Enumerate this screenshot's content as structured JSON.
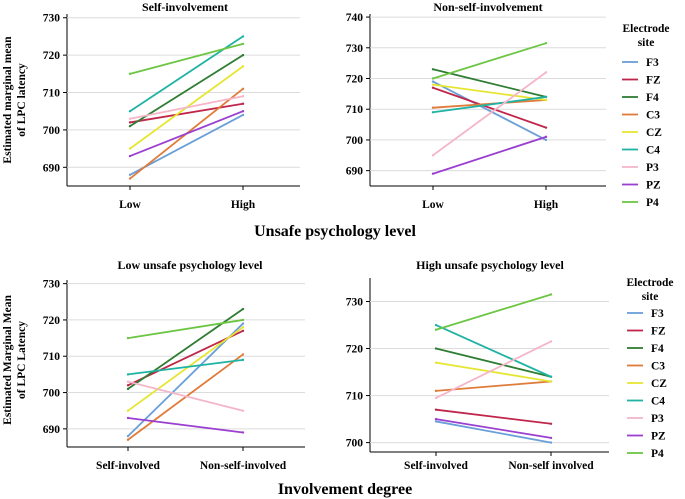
{
  "colors": {
    "F3": "#6a9fd8",
    "FZ": "#c0264a",
    "F4": "#2e7d32",
    "C3": "#e07b39",
    "CZ": "#e6e632",
    "C4": "#1fb3a3",
    "P3": "#f4b6c8",
    "PZ": "#9b3fd0",
    "P4": "#6cc644"
  },
  "axis_labels": {
    "top_x": "Unsafe psychology level",
    "bottom_x": "Involvement degree",
    "top_y_line1": "Estimated marginal mean",
    "top_y_line2": "of LPC latency",
    "bottom_y_line1": "Estimated Marginal Mean",
    "bottom_y_line2": "of LPC Latency"
  },
  "legend": {
    "title_line1": "Electrode",
    "title_line2": "site",
    "items": [
      "F3",
      "FZ",
      "F4",
      "C3",
      "CZ",
      "C4",
      "P3",
      "PZ",
      "P4"
    ]
  },
  "chart_data": [
    {
      "type": "line",
      "title": "Self-involvement",
      "categories": [
        "Low",
        "High"
      ],
      "ylim": [
        685,
        731
      ],
      "yticks": [
        690,
        700,
        710,
        720,
        730
      ],
      "series": [
        {
          "name": "F3",
          "values": [
            688,
            704
          ]
        },
        {
          "name": "FZ",
          "values": [
            702,
            707
          ]
        },
        {
          "name": "F4",
          "values": [
            701,
            720
          ]
        },
        {
          "name": "C3",
          "values": [
            687,
            711
          ]
        },
        {
          "name": "CZ",
          "values": [
            695,
            717
          ]
        },
        {
          "name": "C4",
          "values": [
            705,
            725
          ]
        },
        {
          "name": "P3",
          "values": [
            703,
            709
          ]
        },
        {
          "name": "PZ",
          "values": [
            693,
            705
          ]
        },
        {
          "name": "P4",
          "values": [
            715,
            723
          ]
        }
      ]
    },
    {
      "type": "line",
      "title": "Non-self-involvement",
      "categories": [
        "Low",
        "High"
      ],
      "ylim": [
        685,
        741
      ],
      "yticks": [
        690,
        700,
        710,
        720,
        730,
        740
      ],
      "series": [
        {
          "name": "F3",
          "values": [
            719,
            700
          ]
        },
        {
          "name": "FZ",
          "values": [
            717,
            704
          ]
        },
        {
          "name": "F4",
          "values": [
            723,
            714
          ]
        },
        {
          "name": "C3",
          "values": [
            710.5,
            713
          ]
        },
        {
          "name": "CZ",
          "values": [
            718,
            713
          ]
        },
        {
          "name": "C4",
          "values": [
            709,
            714
          ]
        },
        {
          "name": "P3",
          "values": [
            695,
            722
          ]
        },
        {
          "name": "PZ",
          "values": [
            689,
            701
          ]
        },
        {
          "name": "P4",
          "values": [
            720,
            731.5
          ]
        }
      ]
    },
    {
      "type": "line",
      "title": "Low unsafe psychology level",
      "categories": [
        "Self-involved",
        "Non-self-involved"
      ],
      "ylim": [
        685,
        731
      ],
      "yticks": [
        690,
        700,
        710,
        720,
        730
      ],
      "series": [
        {
          "name": "F3",
          "values": [
            688,
            719
          ]
        },
        {
          "name": "FZ",
          "values": [
            702,
            717
          ]
        },
        {
          "name": "F4",
          "values": [
            701,
            723
          ]
        },
        {
          "name": "C3",
          "values": [
            687,
            710.5
          ]
        },
        {
          "name": "CZ",
          "values": [
            695,
            718
          ]
        },
        {
          "name": "C4",
          "values": [
            705,
            709
          ]
        },
        {
          "name": "P3",
          "values": [
            703,
            695
          ]
        },
        {
          "name": "PZ",
          "values": [
            693,
            689
          ]
        },
        {
          "name": "P4",
          "values": [
            715,
            720
          ]
        }
      ]
    },
    {
      "type": "line",
      "title": "High unsafe psychology level",
      "categories": [
        "Self-involved",
        "Non-self involved"
      ],
      "ylim": [
        698,
        735
      ],
      "yticks": [
        700,
        710,
        720,
        730
      ],
      "series": [
        {
          "name": "F3",
          "values": [
            704.5,
            700
          ]
        },
        {
          "name": "FZ",
          "values": [
            707,
            704
          ]
        },
        {
          "name": "F4",
          "values": [
            720,
            714
          ]
        },
        {
          "name": "C3",
          "values": [
            711,
            713
          ]
        },
        {
          "name": "CZ",
          "values": [
            717,
            713
          ]
        },
        {
          "name": "C4",
          "values": [
            725,
            714
          ]
        },
        {
          "name": "P3",
          "values": [
            709.5,
            721.5
          ]
        },
        {
          "name": "PZ",
          "values": [
            705,
            701
          ]
        },
        {
          "name": "P4",
          "values": [
            724,
            731.5
          ]
        }
      ]
    }
  ]
}
